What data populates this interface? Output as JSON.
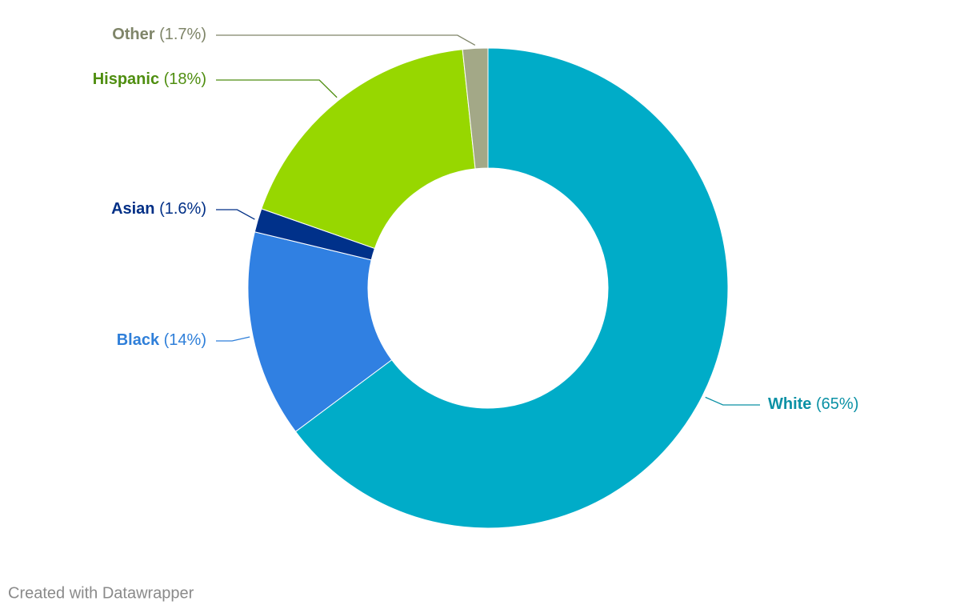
{
  "chart_data": {
    "type": "pie",
    "donut": true,
    "categories": [
      "White",
      "Black",
      "Asian",
      "Hispanic",
      "Other"
    ],
    "values": [
      65,
      14,
      1.6,
      18,
      1.7
    ],
    "value_labels": [
      "(65%)",
      "(14%)",
      "(1.6%)",
      "(18%)",
      "(1.7%)"
    ],
    "colors": [
      "#00acc8",
      "#3080e2",
      "#00318a",
      "#97d700",
      "#a3a887"
    ],
    "label_colors": [
      "#0b91a5",
      "#2f7fd9",
      "#002f86",
      "#4f8e10",
      "#7f8569"
    ]
  },
  "footer": "Created with Datawrapper"
}
